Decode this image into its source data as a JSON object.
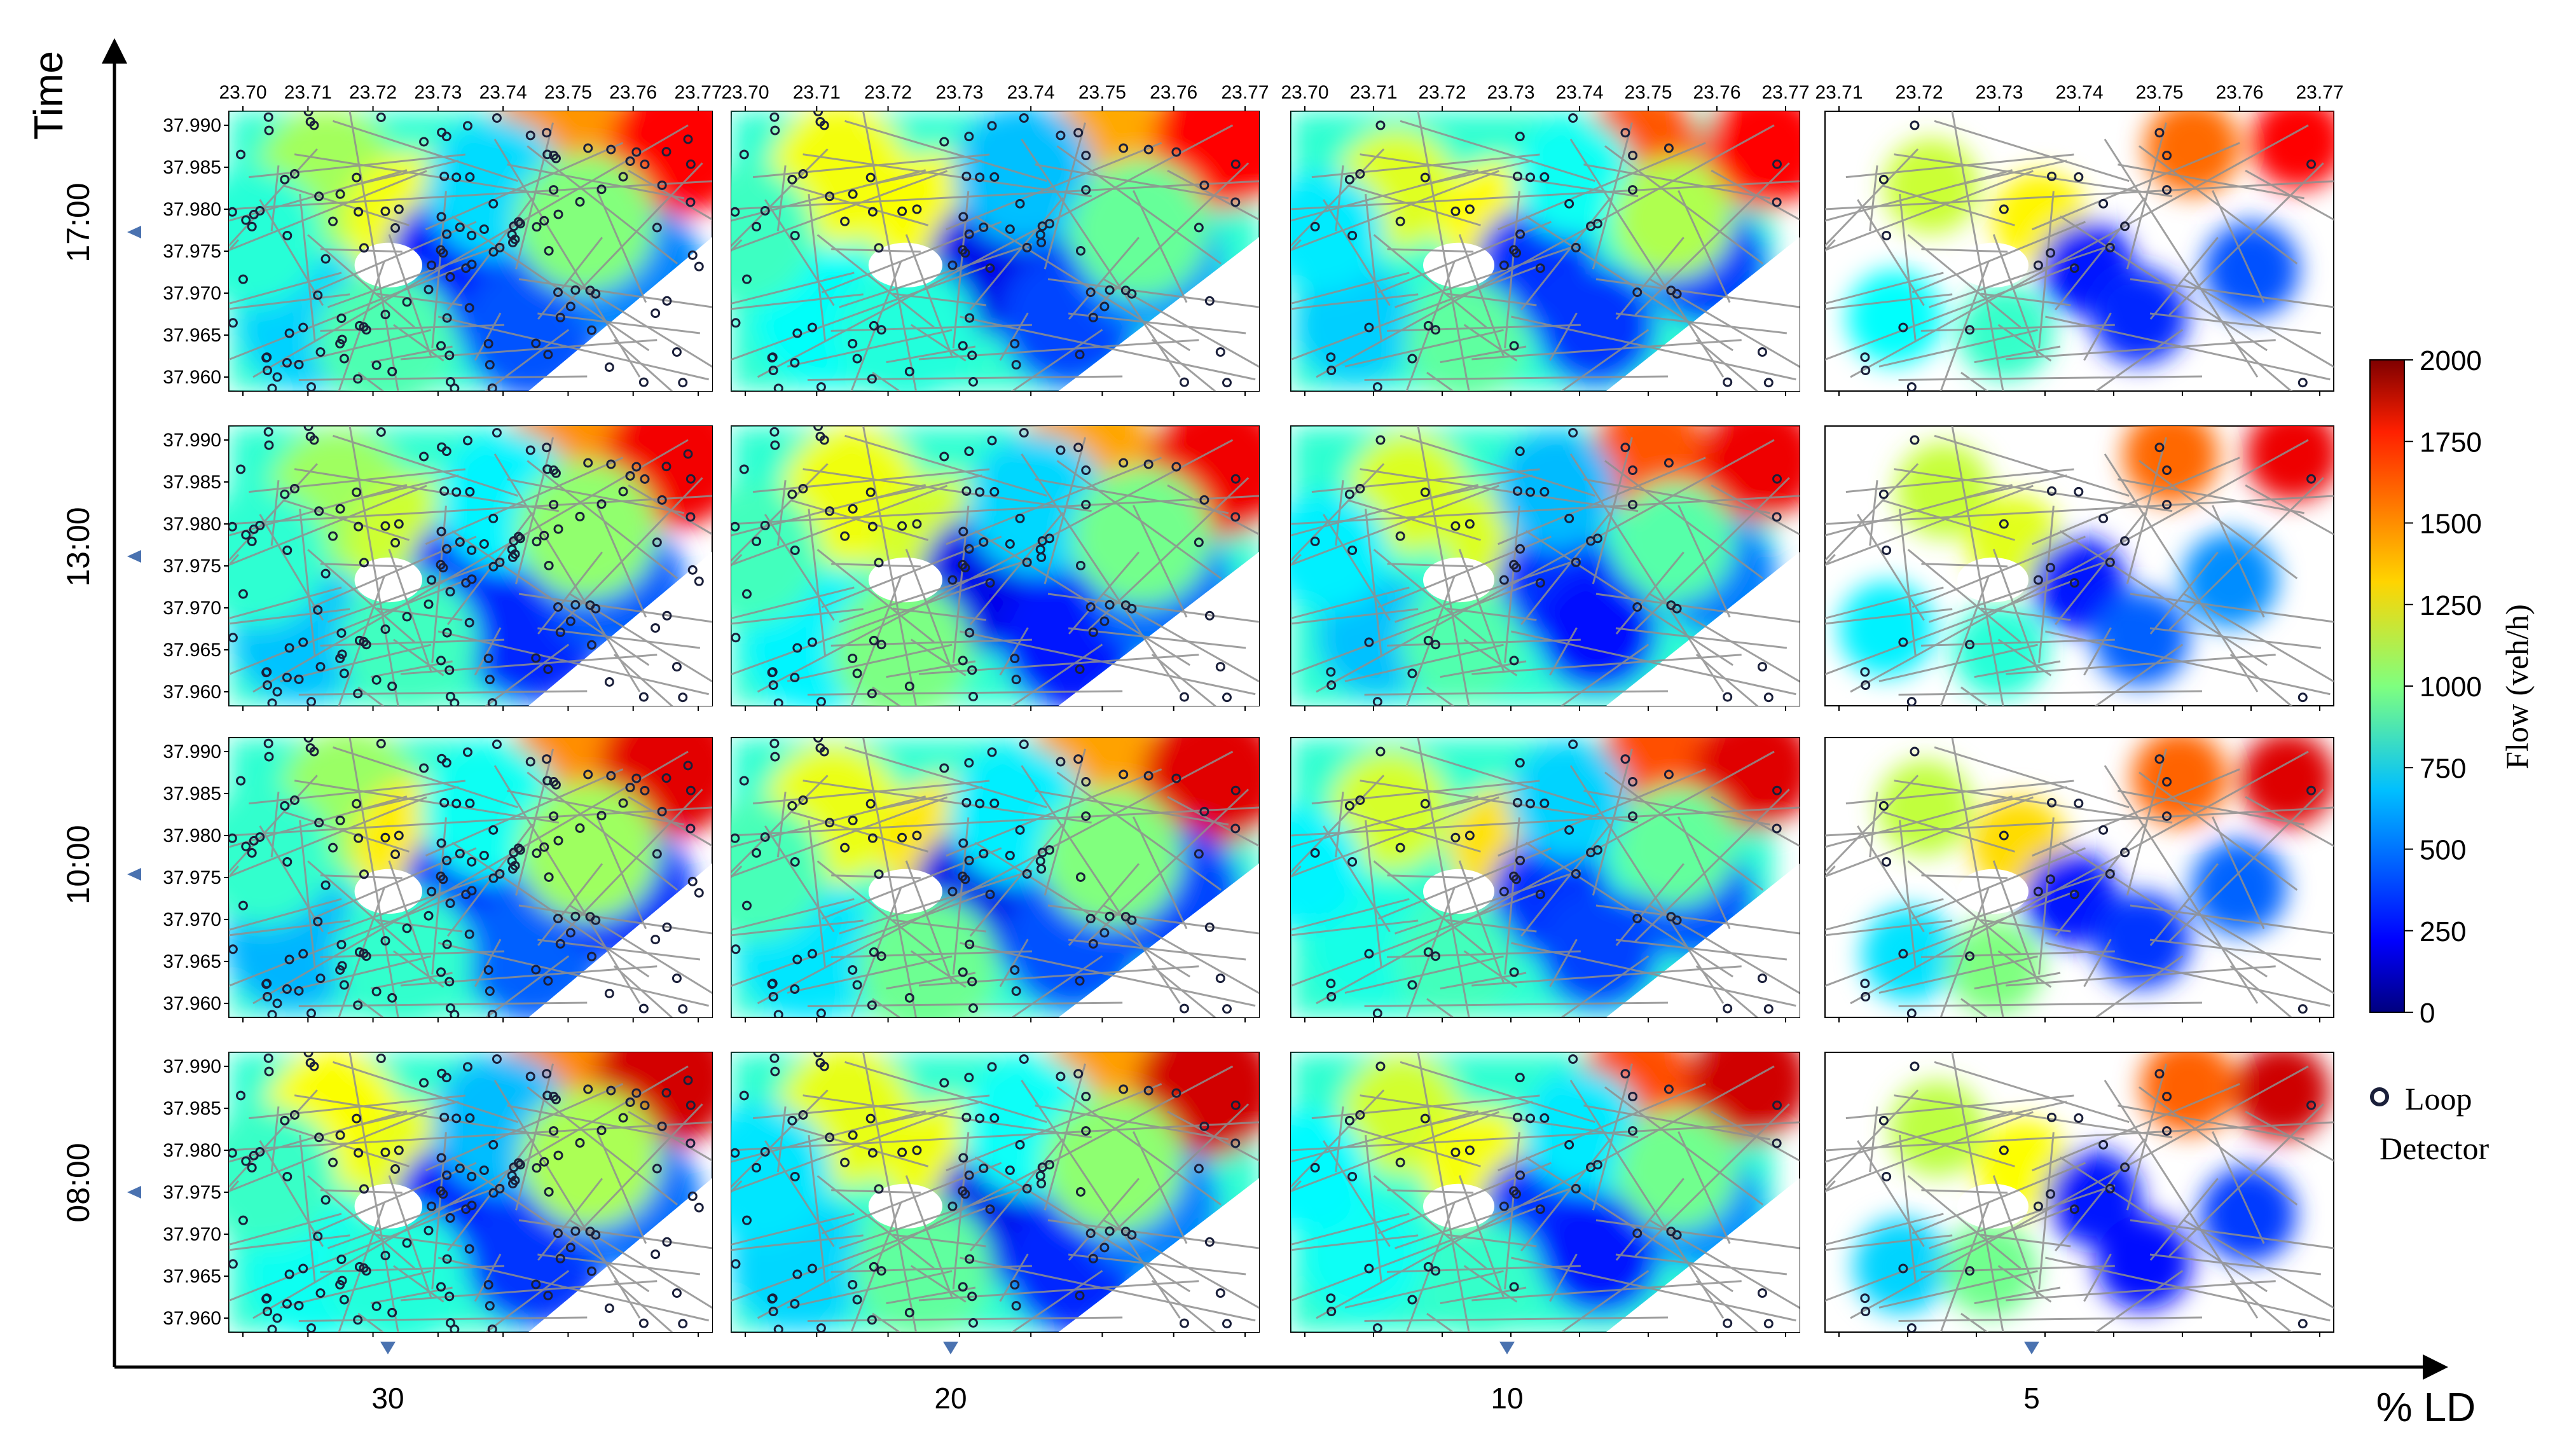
{
  "chart_data": {
    "type": "heatmap",
    "axes": {
      "time_label": "Time",
      "ld_label": "% LD",
      "time_rows": [
        "17:00",
        "13:00",
        "10:00",
        "08:00"
      ],
      "ld_columns": [
        "30",
        "20",
        "10",
        "5"
      ]
    },
    "longitude_ticks": [
      "23.70",
      "23.71",
      "23.72",
      "23.73",
      "23.74",
      "23.75",
      "23.76",
      "23.77"
    ],
    "longitude_ticks_5pct": [
      "23.71",
      "23.72",
      "23.73",
      "23.74",
      "23.75",
      "23.76",
      "23.77"
    ],
    "latitude_ticks": [
      "37.990",
      "37.985",
      "37.980",
      "37.975",
      "37.970",
      "37.965",
      "37.960"
    ],
    "colorbar": {
      "label": "Flow (veh/h)",
      "min": 0,
      "max": 2000,
      "ticks": [
        "2000",
        "1750",
        "1500",
        "1250",
        "1000",
        "750",
        "500",
        "250",
        "0"
      ],
      "colormap": "jet"
    },
    "legend": {
      "marker_label_line1": "Loop",
      "marker_label_line2": "Detector"
    },
    "hotspot_flow_17_00_30pct": {
      "north_east_corridor": 1750,
      "north_center": 1450,
      "west_center": 1200,
      "central_south": 250
    },
    "colors": {
      "road": "#8f8f8f",
      "axis": "#000000",
      "marker": "#1a1f3a",
      "arrow": "#4a72b0"
    }
  }
}
